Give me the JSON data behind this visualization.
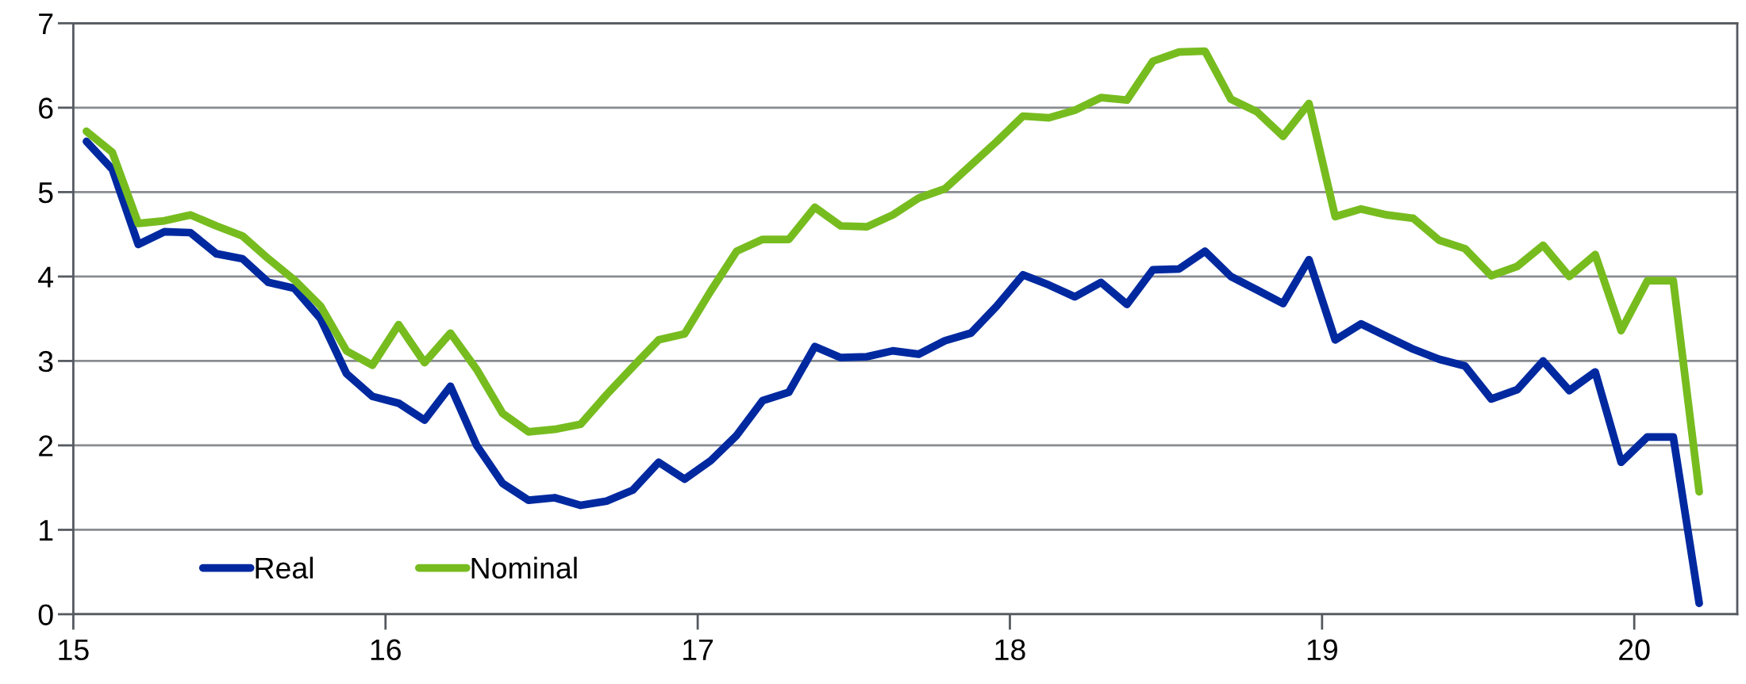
{
  "chart_data": {
    "type": "line",
    "x": [
      15.042,
      15.125,
      15.208,
      15.292,
      15.375,
      15.458,
      15.542,
      15.625,
      15.708,
      15.792,
      15.875,
      15.958,
      16.042,
      16.125,
      16.208,
      16.292,
      16.375,
      16.458,
      16.542,
      16.625,
      16.708,
      16.792,
      16.875,
      16.958,
      17.042,
      17.125,
      17.208,
      17.292,
      17.375,
      17.458,
      17.542,
      17.625,
      17.708,
      17.792,
      17.875,
      17.958,
      18.042,
      18.125,
      18.208,
      18.292,
      18.375,
      18.458,
      18.542,
      18.625,
      18.708,
      18.792,
      18.875,
      18.958,
      19.042,
      19.125,
      19.208,
      19.292,
      19.375,
      19.458,
      19.542,
      19.625,
      19.708,
      19.792,
      19.875,
      19.958,
      20.042,
      20.125,
      20.208
    ],
    "series": [
      {
        "name": "Real",
        "color": "#0029a0",
        "values": [
          5.6,
          5.27,
          4.38,
          4.53,
          4.52,
          4.27,
          4.21,
          3.93,
          3.86,
          3.5,
          2.85,
          2.58,
          2.5,
          2.3,
          2.7,
          2.0,
          1.55,
          1.35,
          1.38,
          1.29,
          1.34,
          1.47,
          1.8,
          1.6,
          1.82,
          2.12,
          2.53,
          2.63,
          3.17,
          3.04,
          3.05,
          3.12,
          3.08,
          3.24,
          3.33,
          3.65,
          4.02,
          3.9,
          3.76,
          3.93,
          3.67,
          4.08,
          4.09,
          4.3,
          4.0,
          3.84,
          3.68,
          4.2,
          3.25,
          3.44,
          3.29,
          3.14,
          3.02,
          2.94,
          2.55,
          2.66,
          3.0,
          2.65,
          2.87,
          1.8,
          2.1,
          2.1,
          0.13
        ]
      },
      {
        "name": "Nominal",
        "color": "#77bc1f",
        "values": [
          5.72,
          5.47,
          4.63,
          4.66,
          4.73,
          4.6,
          4.48,
          4.21,
          3.96,
          3.65,
          3.12,
          2.95,
          3.43,
          2.98,
          3.33,
          2.9,
          2.38,
          2.16,
          2.19,
          2.25,
          2.6,
          2.93,
          3.25,
          3.32,
          3.83,
          4.3,
          4.44,
          4.44,
          4.82,
          4.6,
          4.59,
          4.73,
          4.93,
          5.04,
          5.32,
          5.6,
          5.9,
          5.88,
          5.97,
          6.12,
          6.09,
          6.55,
          6.66,
          6.67,
          6.1,
          5.95,
          5.66,
          6.05,
          4.71,
          4.8,
          4.73,
          4.69,
          4.43,
          4.33,
          4.01,
          4.12,
          4.37,
          4.0,
          4.26,
          3.36,
          3.95,
          3.95,
          1.45
        ]
      }
    ],
    "xlim": [
      15,
      20.33
    ],
    "xticks": [
      15,
      16,
      17,
      18,
      19,
      20
    ],
    "ylim": [
      0,
      7
    ],
    "yticks": [
      0,
      1,
      2,
      3,
      4,
      5,
      6,
      7
    ],
    "grid": "y",
    "legend": "bottom left",
    "marker": "none",
    "line_style": "solid"
  }
}
